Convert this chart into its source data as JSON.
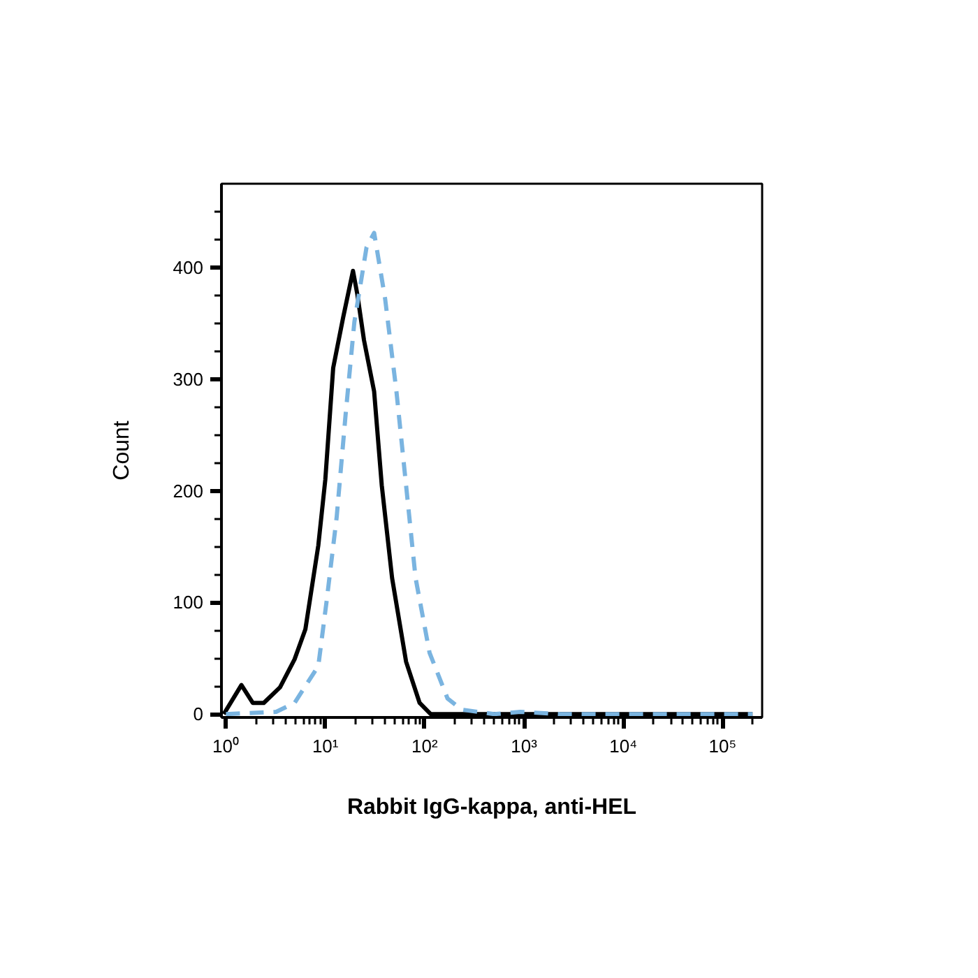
{
  "chart_data": {
    "type": "line",
    "xlabel": "Rabbit IgG-kappa, anti-HEL",
    "ylabel": "Count",
    "log": "x",
    "grid": false,
    "marker": "none",
    "xlim": [
      0.9,
      250000
    ],
    "ylim": [
      -3,
      475
    ],
    "xticks": [
      {
        "value": 1,
        "label": "10⁰"
      },
      {
        "value": 10,
        "label": "10¹"
      },
      {
        "value": 100,
        "label": "10²"
      },
      {
        "value": 1000,
        "label": "10³"
      },
      {
        "value": 10000,
        "label": "10⁴"
      },
      {
        "value": 100000,
        "label": "10⁵"
      },
      {
        "value": 2,
        "label": null
      },
      {
        "value": 3,
        "label": null
      },
      {
        "value": 4,
        "label": null
      },
      {
        "value": 5,
        "label": null
      },
      {
        "value": 6,
        "label": null
      },
      {
        "value": 7,
        "label": null
      },
      {
        "value": 8,
        "label": null
      },
      {
        "value": 9,
        "label": null
      },
      {
        "value": 20,
        "label": null
      },
      {
        "value": 30,
        "label": null
      },
      {
        "value": 40,
        "label": null
      },
      {
        "value": 50,
        "label": null
      },
      {
        "value": 60,
        "label": null
      },
      {
        "value": 70,
        "label": null
      },
      {
        "value": 80,
        "label": null
      },
      {
        "value": 90,
        "label": null
      },
      {
        "value": 200,
        "label": null
      },
      {
        "value": 300,
        "label": null
      },
      {
        "value": 400,
        "label": null
      },
      {
        "value": 500,
        "label": null
      },
      {
        "value": 600,
        "label": null
      },
      {
        "value": 700,
        "label": null
      },
      {
        "value": 800,
        "label": null
      },
      {
        "value": 900,
        "label": null
      },
      {
        "value": 2000,
        "label": null
      },
      {
        "value": 3000,
        "label": null
      },
      {
        "value": 4000,
        "label": null
      },
      {
        "value": 5000,
        "label": null
      },
      {
        "value": 6000,
        "label": null
      },
      {
        "value": 7000,
        "label": null
      },
      {
        "value": 8000,
        "label": null
      },
      {
        "value": 9000,
        "label": null
      },
      {
        "value": 20000,
        "label": null
      },
      {
        "value": 30000,
        "label": null
      },
      {
        "value": 40000,
        "label": null
      },
      {
        "value": 50000,
        "label": null
      },
      {
        "value": 60000,
        "label": null
      },
      {
        "value": 70000,
        "label": null
      },
      {
        "value": 80000,
        "label": null
      },
      {
        "value": 90000,
        "label": null
      },
      {
        "value": 200000,
        "label": null
      }
    ],
    "yticks": [
      0,
      100,
      200,
      300,
      400,
      {
        "value": 25,
        "label": null
      },
      {
        "value": 50,
        "label": null
      },
      {
        "value": 75,
        "label": null
      },
      {
        "value": 125,
        "label": null
      },
      {
        "value": 150,
        "label": null
      },
      {
        "value": 175,
        "label": null
      },
      {
        "value": 225,
        "label": null
      },
      {
        "value": 250,
        "label": null
      },
      {
        "value": 275,
        "label": null
      },
      {
        "value": 325,
        "label": null
      },
      {
        "value": 350,
        "label": null
      },
      {
        "value": 375,
        "label": null
      },
      {
        "value": 425,
        "label": null
      },
      {
        "value": 450,
        "label": null
      }
    ],
    "series": [
      {
        "color": "#000000",
        "line_style": "solid",
        "x": [
          0.95,
          1.43,
          1.86,
          2.4,
          3.5,
          4.9,
          6.3,
          8.5,
          10,
          12,
          15.1,
          19,
          21,
          24.5,
          31,
          37,
          47,
          65,
          89,
          115,
          1000,
          10000,
          200000
        ],
        "values": [
          0,
          26,
          10,
          10,
          24,
          49,
          76,
          151,
          210,
          310,
          355,
          397,
          376,
          335,
          289,
          205,
          122,
          47,
          10,
          0,
          0,
          0,
          0
        ]
      },
      {
        "color": "#7ab4e0",
        "line_style": "dashed",
        "x": [
          1,
          3.2,
          4.9,
          8.5,
          10.3,
          13,
          16,
          19.6,
          26,
          31,
          40,
          52,
          65,
          81,
          112,
          170,
          236,
          500,
          920,
          2300,
          10000,
          200000
        ],
        "values": [
          0,
          2,
          10,
          43,
          101,
          176,
          268,
          351,
          418,
          431,
          372,
          289,
          205,
          122,
          55,
          14,
          4,
          0,
          2,
          0,
          0,
          0
        ]
      }
    ]
  }
}
